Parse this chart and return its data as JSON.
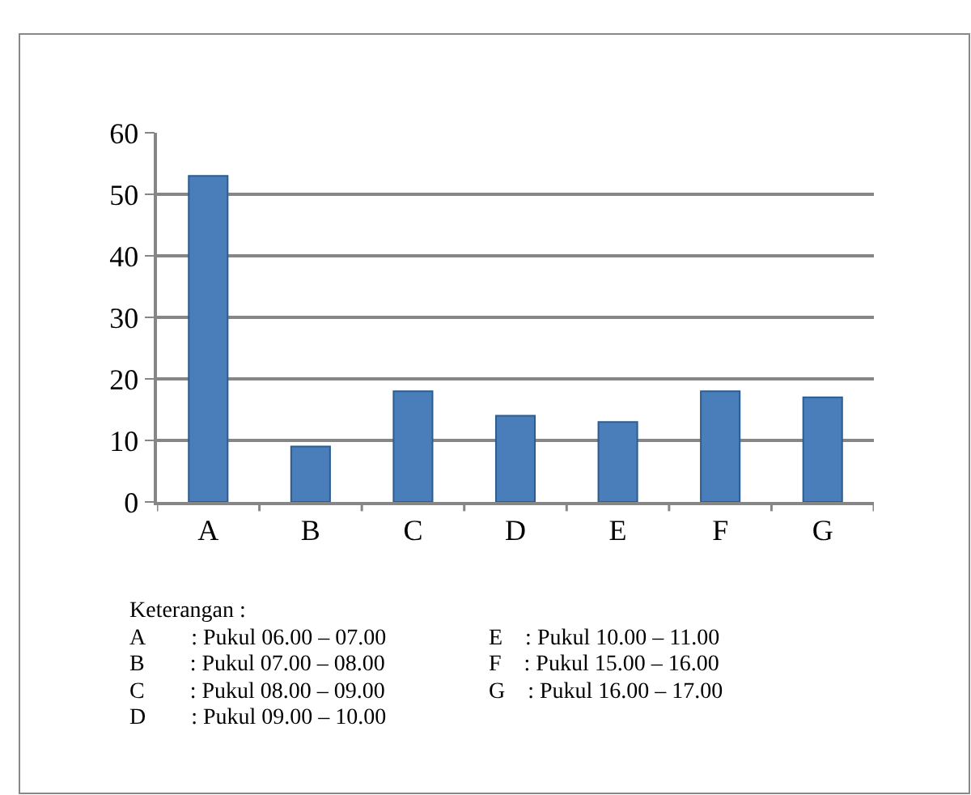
{
  "chart_data": {
    "type": "bar",
    "categories": [
      "A",
      "B",
      "C",
      "D",
      "E",
      "F",
      "G"
    ],
    "values": [
      53,
      9,
      18,
      14,
      13,
      18,
      17
    ],
    "color": "#4a7ebb",
    "ylim": [
      0,
      60
    ],
    "yticks": [
      0,
      10,
      20,
      30,
      40,
      50,
      60
    ],
    "grid": "y",
    "legend": false,
    "annotations": [
      "Keterangan :",
      "A  : Pukul 06.00 – 07.00",
      "B  : Pukul 07.00 – 08.00",
      "C  : Pukul 08.00 – 09.00",
      "D  : Pukul 09.00 – 10.00",
      "E : Pukul 10.00 – 11.00",
      "F : Pukul 15.00 – 16.00",
      "G : Pukul 16.00 – 17.00"
    ]
  }
}
